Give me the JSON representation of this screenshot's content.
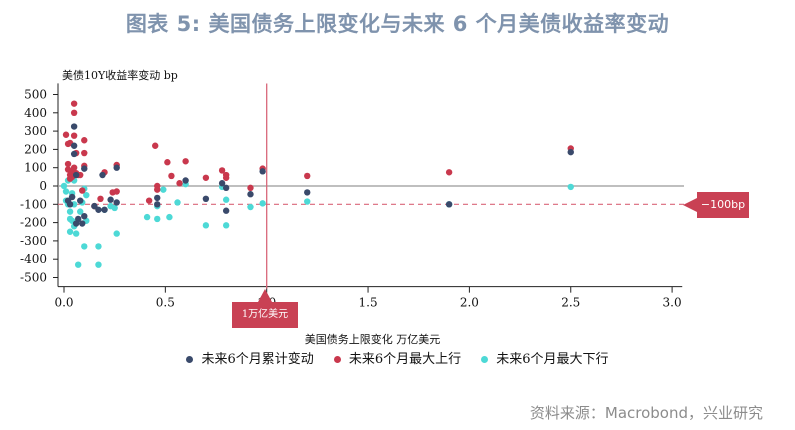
{
  "title": "图表 5:  美国债务上限变化与未来 6 个月美债收益率变动",
  "source": "资料来源：Macrobond，兴业研究",
  "annotations": {
    "hline_label": "−100bp",
    "vline_label": "1万亿美元"
  },
  "colors": {
    "cumulative": "#3a4a6b",
    "max_up": "#c9384d",
    "max_down": "#4dd9d6",
    "ref_line": "#d9677a",
    "zero_line": "#999999"
  },
  "chart_data": {
    "type": "scatter",
    "title": "图表 5:  美国债务上限变化与未来 6 个月美债收益率变动",
    "xlabel": "美国债务上限变化 万亿美元",
    "ylabel": "美债10Y收益率变动 bp",
    "xlim": [
      0,
      3.05
    ],
    "ylim": [
      -550,
      550
    ],
    "x_ticks": [
      "0.0",
      "0.5",
      "1.0",
      "1.5",
      "2.0",
      "2.5",
      "3.0"
    ],
    "y_ticks": [
      "500",
      "400",
      "300",
      "200",
      "100",
      "0",
      "-100",
      "-200",
      "-300",
      "-400",
      "-500"
    ],
    "grid": false,
    "legend_position": "bottom",
    "reference_lines": [
      {
        "orientation": "horizontal",
        "value": -100,
        "style": "dashed",
        "label": "−100bp"
      },
      {
        "orientation": "vertical",
        "value": 1.0,
        "style": "solid",
        "label": "1万亿美元"
      }
    ],
    "series": [
      {
        "name": "未来6个月累计变动",
        "color": "#3a4a6b",
        "points": [
          [
            0.02,
            -80
          ],
          [
            0.03,
            -100
          ],
          [
            0.04,
            -60
          ],
          [
            0.05,
            325
          ],
          [
            0.05,
            220
          ],
          [
            0.05,
            175
          ],
          [
            0.06,
            60
          ],
          [
            0.06,
            -205
          ],
          [
            0.07,
            -180
          ],
          [
            0.08,
            -80
          ],
          [
            0.09,
            -205
          ],
          [
            0.1,
            -165
          ],
          [
            0.1,
            95
          ],
          [
            0.15,
            -110
          ],
          [
            0.17,
            -130
          ],
          [
            0.19,
            60
          ],
          [
            0.2,
            -130
          ],
          [
            0.23,
            -75
          ],
          [
            0.26,
            -90
          ],
          [
            0.26,
            100
          ],
          [
            0.46,
            -65
          ],
          [
            0.46,
            -100
          ],
          [
            0.6,
            30
          ],
          [
            0.7,
            -70
          ],
          [
            0.78,
            15
          ],
          [
            0.8,
            -10
          ],
          [
            0.8,
            -135
          ],
          [
            0.92,
            -45
          ],
          [
            0.98,
            80
          ],
          [
            1.2,
            -35
          ],
          [
            1.9,
            -100
          ],
          [
            2.5,
            185
          ]
        ]
      },
      {
        "name": "未来6个月最大上行",
        "color": "#c9384d",
        "points": [
          [
            0.01,
            280
          ],
          [
            0.02,
            230
          ],
          [
            0.02,
            120
          ],
          [
            0.02,
            90
          ],
          [
            0.03,
            235
          ],
          [
            0.03,
            60
          ],
          [
            0.03,
            40
          ],
          [
            0.04,
            80
          ],
          [
            0.04,
            50
          ],
          [
            0.05,
            450
          ],
          [
            0.05,
            400
          ],
          [
            0.05,
            275
          ],
          [
            0.05,
            100
          ],
          [
            0.06,
            180
          ],
          [
            0.06,
            70
          ],
          [
            0.07,
            60
          ],
          [
            0.08,
            60
          ],
          [
            0.09,
            -25
          ],
          [
            0.1,
            250
          ],
          [
            0.1,
            180
          ],
          [
            0.1,
            110
          ],
          [
            0.15,
            -110
          ],
          [
            0.18,
            -70
          ],
          [
            0.2,
            75
          ],
          [
            0.24,
            -35
          ],
          [
            0.26,
            115
          ],
          [
            0.26,
            -30
          ],
          [
            0.42,
            -80
          ],
          [
            0.45,
            220
          ],
          [
            0.46,
            0
          ],
          [
            0.46,
            -20
          ],
          [
            0.51,
            130
          ],
          [
            0.53,
            55
          ],
          [
            0.57,
            15
          ],
          [
            0.6,
            135
          ],
          [
            0.7,
            45
          ],
          [
            0.78,
            85
          ],
          [
            0.8,
            60
          ],
          [
            0.8,
            45
          ],
          [
            0.92,
            -10
          ],
          [
            0.98,
            95
          ],
          [
            1.2,
            55
          ],
          [
            1.9,
            75
          ],
          [
            2.5,
            205
          ]
        ]
      },
      {
        "name": "未来6个月最大下行",
        "color": "#4dd9d6",
        "points": [
          [
            0.0,
            0
          ],
          [
            0.01,
            -30
          ],
          [
            0.01,
            -80
          ],
          [
            0.02,
            -100
          ],
          [
            0.02,
            30
          ],
          [
            0.03,
            -140
          ],
          [
            0.03,
            -180
          ],
          [
            0.03,
            -250
          ],
          [
            0.04,
            -190
          ],
          [
            0.04,
            -60
          ],
          [
            0.04,
            -40
          ],
          [
            0.05,
            -220
          ],
          [
            0.05,
            30
          ],
          [
            0.05,
            -100
          ],
          [
            0.06,
            -260
          ],
          [
            0.07,
            -430
          ],
          [
            0.08,
            -140
          ],
          [
            0.09,
            -90
          ],
          [
            0.1,
            -330
          ],
          [
            0.1,
            -15
          ],
          [
            0.11,
            -50
          ],
          [
            0.11,
            -190
          ],
          [
            0.17,
            -430
          ],
          [
            0.17,
            -330
          ],
          [
            0.2,
            -130
          ],
          [
            0.23,
            -110
          ],
          [
            0.25,
            -120
          ],
          [
            0.26,
            -260
          ],
          [
            0.41,
            -170
          ],
          [
            0.46,
            -110
          ],
          [
            0.46,
            -180
          ],
          [
            0.49,
            -20
          ],
          [
            0.52,
            -170
          ],
          [
            0.56,
            -90
          ],
          [
            0.6,
            10
          ],
          [
            0.7,
            -215
          ],
          [
            0.78,
            -5
          ],
          [
            0.8,
            -215
          ],
          [
            0.8,
            -75
          ],
          [
            0.92,
            -115
          ],
          [
            0.98,
            -95
          ],
          [
            1.2,
            -85
          ],
          [
            1.9,
            -100
          ],
          [
            2.5,
            -5
          ]
        ]
      }
    ]
  }
}
